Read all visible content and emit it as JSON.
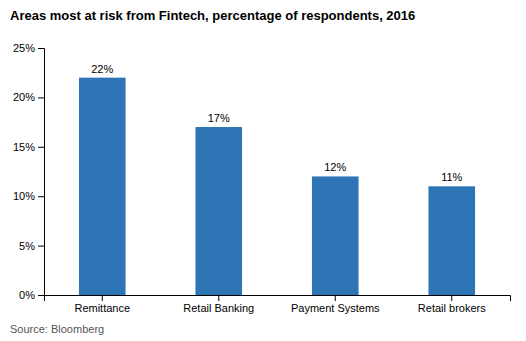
{
  "chart_data": {
    "type": "bar",
    "title": "Areas most at risk from Fintech, percentage of respondents, 2016",
    "annotations": [
      "Source: Bloomberg"
    ],
    "categories": [
      "Remittance",
      "Retail Banking",
      "Payment Systems",
      "Retail brokers"
    ],
    "values": [
      22,
      17,
      12,
      11
    ],
    "value_labels": [
      "22%",
      "17%",
      "12%",
      "11%"
    ],
    "data_labels": true,
    "color": "#2E75B6",
    "ylim": [
      0,
      25
    ],
    "yticks": [
      {
        "value": 0,
        "label": "0%"
      },
      {
        "value": 5,
        "label": "5%"
      },
      {
        "value": 10,
        "label": "10%"
      },
      {
        "value": 15,
        "label": "15%"
      },
      {
        "value": 20,
        "label": "20%"
      },
      {
        "value": 25,
        "label": "25%"
      }
    ],
    "grid": false
  }
}
